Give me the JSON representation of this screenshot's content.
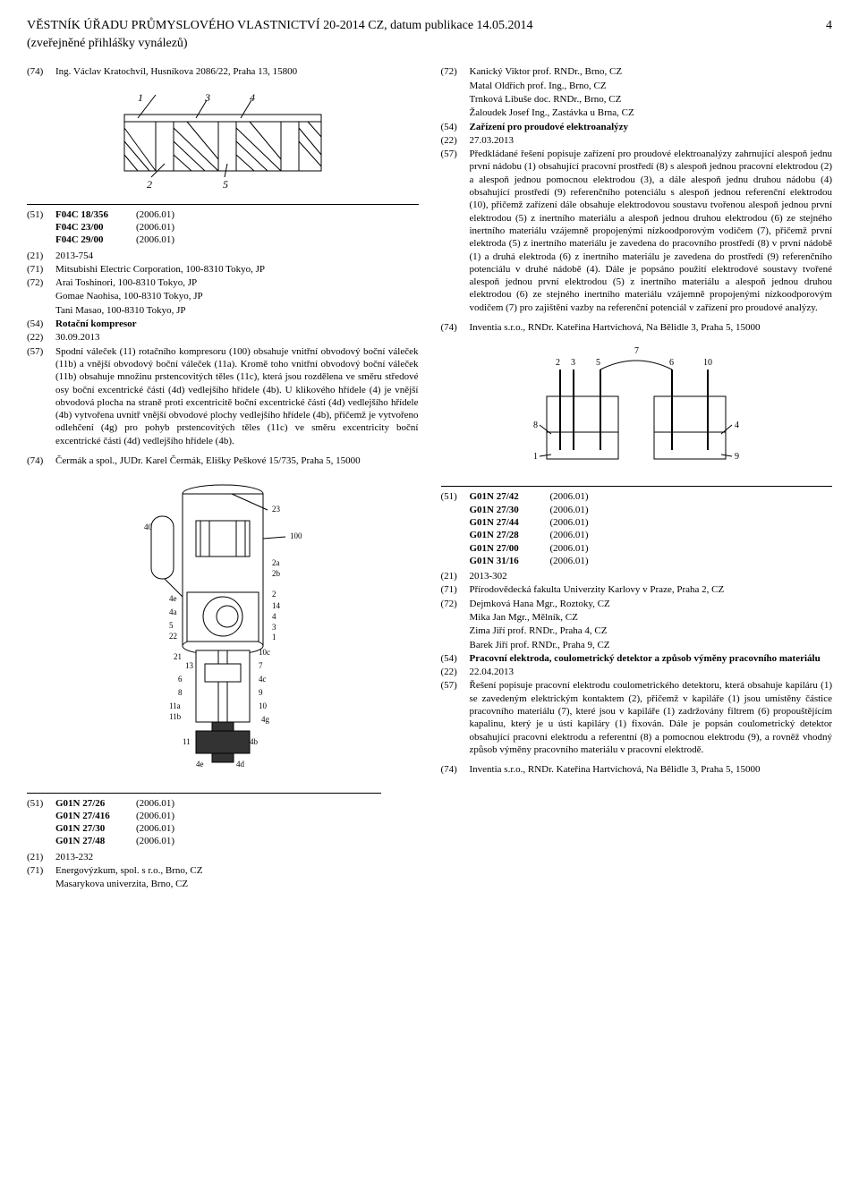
{
  "header": {
    "title": "VĚSTNÍK ÚŘADU PRŮMYSLOVÉHO VLASTNICTVÍ 20-2014 CZ, datum publikace 14.05.2014",
    "subtitle": "(zveřejněné přihlášky vynálezů)",
    "page_number": "4"
  },
  "left_col": {
    "entry1": {
      "code74": "Ing. Václav Kratochvíl, Husníkova 2086/22, Praha 13, 15800"
    },
    "entry2": {
      "class_rows": [
        {
          "c51": "(51)",
          "name": "F04C 18/356",
          "year": "(2006.01)"
        },
        {
          "c51": "",
          "name": "F04C 23/00",
          "year": "(2006.01)"
        },
        {
          "c51": "",
          "name": "F04C 29/00",
          "year": "(2006.01)"
        }
      ],
      "code21": "2013-754",
      "code71": "Mitsubishi Electric Corporation, 100-8310 Tokyo, JP",
      "code72_lines": [
        "Arai Toshinori, 100-8310 Tokyo, JP",
        "Gomae Naohisa, 100-8310 Tokyo, JP",
        "Tani Masao, 100-8310 Tokyo, JP"
      ],
      "code54": "Rotační kompresor",
      "code22": "30.09.2013",
      "code57": "Spodní váleček (11) rotačního kompresoru (100) obsahuje vnitřní obvodový boční váleček (11b) a vnější obvodový boční váleček (11a). Kromě toho vnitřní obvodový boční váleček (11b) obsahuje množinu prstencovitých těles (11c), která jsou rozdělena ve směru středové osy boční excentrické části (4d) vedlejšího hřídele (4b). U klikového hřídele (4) je vnější obvodová plocha na straně proti excentricitě boční excentrické části (4d) vedlejšího hřídele (4b) vytvořena uvnitř vnější obvodové plochy vedlejšího hřídele (4b), přičemž je vytvořeno odlehčení (4g) pro pohyb prstencovitých těles (11c) ve směru excentricity boční excentrické části (4d) vedlejšího hřídele (4b).",
      "code74": "Čermák a spol., JUDr. Karel Čermák, Elišky Peškové 15/735, Praha 5, 15000"
    }
  },
  "right_col": {
    "entry1": {
      "code72_lines": [
        "Kanický Viktor prof. RNDr., Brno, CZ",
        "Matal Oldřich prof. Ing., Brno, CZ",
        "Trnková Libuše doc. RNDr., Brno, CZ",
        "Žaloudek Josef Ing., Zastávka u Brna, CZ"
      ],
      "code54": "Zařízení pro proudové elektroanalýzy",
      "code22": "27.03.2013",
      "code57": "Předkládané řešení popisuje zařízení pro proudové elektroanalýzy zahrnující alespoň jednu první nádobu (1) obsahující pracovní prostředí (8) s alespoň jednou pracovní elektrodou (2) a alespoň jednou pomocnou elektrodou (3), a dále alespoň jednu druhou nádobu (4) obsahující prostředí (9) referenčního potenciálu s alespoň jednou referenční elektrodou (10), přičemž zařízení dále obsahuje elektrodovou soustavu tvořenou alespoň jednou první elektrodou (5) z inertního materiálu a alespoň jednou druhou elektrodou (6) ze stejného inertního materiálu vzájemně propojenými nízkoodporovým vodičem (7), přičemž první elektroda (5) z inertního materiálu je zavedena do pracovního prostředí (8) v první nádobě (1) a druhá elektroda (6) z inertního materiálu je zavedena do prostředí (9) referenčního potenciálu v druhé nádobě (4). Dále je popsáno použití elektrodové soustavy tvořené alespoň jednou první elektrodou (5) z inertního materiálu a alespoň jednou druhou elektrodou (6) ze stejného inertního materiálu vzájemně propojenými nízkoodporovým vodičem (7) pro zajištění vazby na referenční potenciál v zařízení pro proudové analýzy.",
      "code74": "Inventia s.r.o., RNDr. Kateřina Hartvichová, Na Bělidle 3, Praha 5, 15000"
    },
    "entry2": {
      "class_rows": [
        {
          "c51": "(51)",
          "name": "G01N 27/42",
          "year": "(2006.01)"
        },
        {
          "c51": "",
          "name": "G01N 27/30",
          "year": "(2006.01)"
        },
        {
          "c51": "",
          "name": "G01N 27/44",
          "year": "(2006.01)"
        },
        {
          "c51": "",
          "name": "G01N 27/28",
          "year": "(2006.01)"
        },
        {
          "c51": "",
          "name": "G01N 27/00",
          "year": "(2006.01)"
        },
        {
          "c51": "",
          "name": "G01N 31/16",
          "year": "(2006.01)"
        }
      ],
      "code21": "2013-302",
      "code71": "Přírodovědecká fakulta Univerzity Karlovy v Praze, Praha 2, CZ",
      "code72_lines": [
        "Dejmková Hana Mgr., Roztoky, CZ",
        "Mika Jan Mgr., Mělník, CZ",
        "Zima Jiří prof. RNDr., Praha 4, CZ",
        "Barek Jiří prof. RNDr., Praha 9, CZ"
      ],
      "code54": "Pracovní elektroda, coulometrický detektor a způsob výměny pracovního materiálu",
      "code22": "22.04.2013",
      "code57": "Řešení popisuje pracovní elektrodu coulometrického detektoru, která obsahuje kapiláru (1) se zavedeným elektrickým kontaktem (2), přičemž v kapiláře (1) jsou umístěny částice pracovního materiálu (7), které jsou v kapiláře (1) zadržovány filtrem (6) propouštějícím kapalinu, který je u ústí kapiláry (1) fixován. Dále je popsán coulometrický detektor obsahující pracovní elektrodu a referentní (8) a pomocnou elektrodu (9), a rovněž vhodný způsob výměny pracovního materiálu v pracovní elektrodě.",
      "code74": "Inventia s.r.o., RNDr. Kateřina Hartvichová, Na Bělidle 3, Praha 5, 15000"
    }
  },
  "bottom": {
    "class_rows": [
      {
        "c51": "(51)",
        "name": "G01N 27/26",
        "year": "(2006.01)"
      },
      {
        "c51": "",
        "name": "G01N 27/416",
        "year": "(2006.01)"
      },
      {
        "c51": "",
        "name": "G01N 27/30",
        "year": "(2006.01)"
      },
      {
        "c51": "",
        "name": "G01N 27/48",
        "year": "(2006.01)"
      }
    ],
    "code21": "2013-232",
    "code71_lines": [
      "Energovýzkum, spol. s r.o., Brno, CZ",
      "Masarykova univerzita, Brno, CZ"
    ]
  },
  "labels": {
    "c21": "(21)",
    "c22": "(22)",
    "c51": "(51)",
    "c54": "(54)",
    "c57": "(57)",
    "c71": "(71)",
    "c72": "(72)",
    "c74": "(74)"
  }
}
